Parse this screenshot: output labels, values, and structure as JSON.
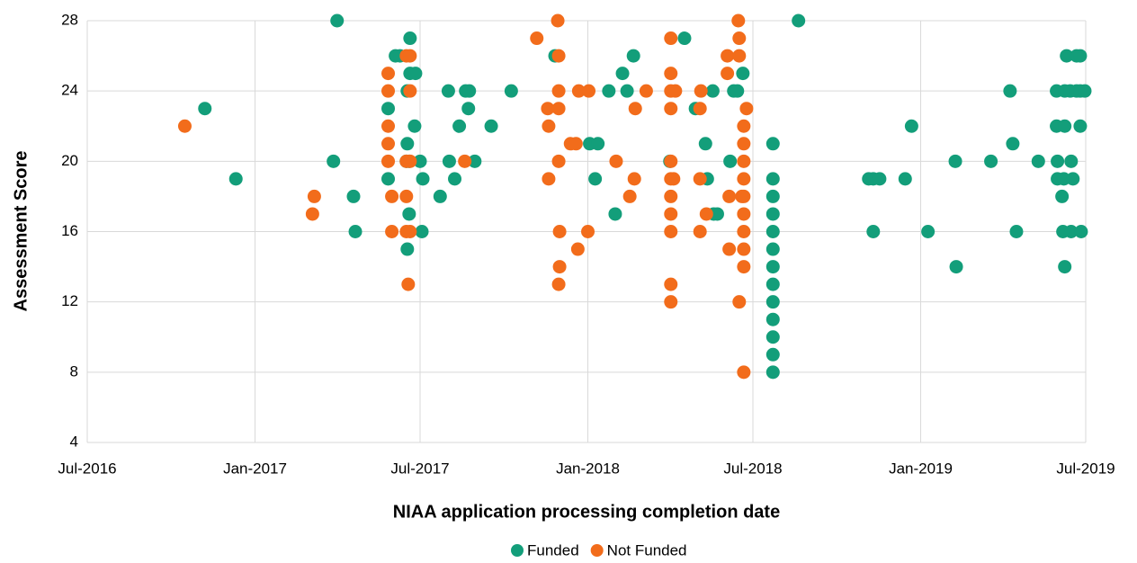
{
  "chart_data": {
    "type": "scatter",
    "x_label": "NIAA application processing completion date",
    "y_label": "Assessment Score",
    "xlim": [
      42552,
      43647
    ],
    "xticks": [
      {
        "value": 42552,
        "label": "Jul-2016"
      },
      {
        "value": 42736,
        "label": "Jan-2017"
      },
      {
        "value": 42917,
        "label": "Jul-2017"
      },
      {
        "value": 43101,
        "label": "Jan-2018"
      },
      {
        "value": 43282,
        "label": "Jul-2018"
      },
      {
        "value": 43466,
        "label": "Jan-2019"
      },
      {
        "value": 43647,
        "label": "Jul-2019"
      }
    ],
    "ylim": [
      4,
      28
    ],
    "yticks": [
      4,
      8,
      12,
      16,
      20,
      24,
      28
    ],
    "grid": true,
    "legend": "bottom",
    "series": [
      {
        "name": "Funded",
        "color": "#139e7a",
        "x": [
          42681,
          42715,
          42822,
          42826,
          42844,
          42846,
          42882,
          42882,
          42890,
          42895,
          42902,
          42903,
          42903,
          42905,
          42903,
          42905,
          42906,
          42906,
          42911,
          42912,
          42917,
          42919,
          42920,
          42939,
          42948,
          42949,
          42955,
          42960,
          42967,
          42970,
          42971,
          42977,
          42995,
          43017,
          43065,
          43103,
          43112,
          43109,
          43124,
          43131,
          43139,
          43144,
          43151,
          43191,
          43207,
          43219,
          43230,
          43232,
          43238,
          43239,
          43243,
          43257,
          43261,
          43265,
          43271,
          43304,
          43304,
          43304,
          43304,
          43304,
          43304,
          43304,
          43304,
          43304,
          43304,
          43304,
          43304,
          43304,
          43332,
          43409,
          43414,
          43421,
          43414,
          43449,
          43456,
          43474,
          43504,
          43505,
          43543,
          43564,
          43567,
          43571,
          43595,
          43615,
          43615,
          43616,
          43616,
          43621,
          43622,
          43624,
          43626,
          43624,
          43624,
          43623,
          43630,
          43631,
          43631,
          43633,
          43637,
          43637,
          43641,
          43641,
          43641,
          43642,
          43646
        ],
        "values": [
          23,
          19,
          20,
          28,
          18,
          16,
          23,
          19,
          26,
          26,
          20,
          24,
          21,
          17,
          15,
          20,
          27,
          25,
          22,
          25,
          20,
          16,
          19,
          18,
          24,
          20,
          19,
          22,
          24,
          23,
          24,
          20,
          22,
          24,
          26,
          21,
          21,
          19,
          24,
          17,
          25,
          24,
          26,
          20,
          27,
          23,
          21,
          19,
          24,
          17,
          17,
          20,
          24,
          24,
          25,
          21,
          19,
          18,
          17,
          16,
          15,
          14,
          13,
          12,
          11,
          10,
          9,
          8,
          28,
          19,
          19,
          19,
          16,
          19,
          22,
          16,
          20,
          14,
          20,
          24,
          21,
          16,
          20,
          24,
          22,
          20,
          19,
          18,
          16,
          14,
          26,
          24,
          22,
          19,
          24,
          20,
          16,
          19,
          26,
          24,
          26,
          24,
          22,
          16,
          24
        ]
      },
      {
        "name": "Not Funded",
        "color": "#f26c1b",
        "x": [
          42659,
          42799,
          42801,
          42882,
          42882,
          42882,
          42882,
          42882,
          42886,
          42886,
          42902,
          42902,
          42902,
          42902,
          42904,
          42906,
          42906,
          42906,
          42906,
          42966,
          43045,
          43057,
          43058,
          43058,
          43068,
          43069,
          43069,
          43069,
          43069,
          43070,
          43070,
          43069,
          43082,
          43088,
          43090,
          43091,
          43102,
          43101,
          43132,
          43147,
          43152,
          43153,
          43165,
          43192,
          43192,
          43192,
          43192,
          43192,
          43192,
          43192,
          43192,
          43192,
          43192,
          43192,
          43195,
          43197,
          43225,
          43224,
          43224,
          43224,
          43231,
          43254,
          43254,
          43256,
          43256,
          43266,
          43267,
          43267,
          43267,
          43270,
          43272,
          43272,
          43272,
          43272,
          43272,
          43272,
          43272,
          43272,
          43272,
          43272,
          43275
        ],
        "values": [
          22,
          17,
          18,
          25,
          24,
          22,
          21,
          20,
          18,
          16,
          26,
          20,
          18,
          16,
          13,
          26,
          24,
          20,
          16,
          20,
          27,
          23,
          22,
          19,
          28,
          26,
          24,
          23,
          20,
          16,
          14,
          13,
          21,
          21,
          15,
          24,
          24,
          16,
          20,
          18,
          19,
          23,
          24,
          27,
          25,
          24,
          23,
          20,
          19,
          18,
          17,
          16,
          13,
          12,
          19,
          24,
          24,
          23,
          19,
          16,
          17,
          26,
          25,
          18,
          15,
          28,
          27,
          26,
          12,
          18,
          19,
          18,
          17,
          16,
          15,
          14,
          8,
          22,
          21,
          20,
          23
        ]
      }
    ]
  }
}
